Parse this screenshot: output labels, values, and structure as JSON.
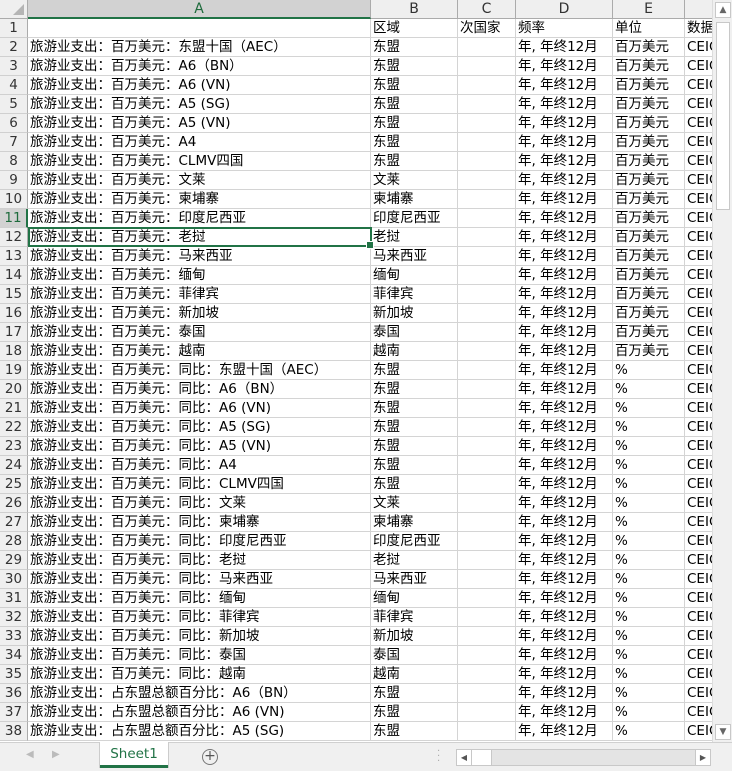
{
  "columns": [
    "A",
    "B",
    "C",
    "D",
    "E",
    ""
  ],
  "selected_cell": "A12",
  "rows": [
    [
      "",
      "区域",
      "次国家",
      "频率",
      "单位",
      "数据"
    ],
    [
      "旅游业支出：百万美元：东盟十国（AEC）",
      "东盟",
      "",
      "年, 年终12月",
      "百万美元",
      "CEIC"
    ],
    [
      "旅游业支出：百万美元：A6（BN）",
      "东盟",
      "",
      "年, 年终12月",
      "百万美元",
      "CEIC"
    ],
    [
      "旅游业支出：百万美元：A6 (VN)",
      "东盟",
      "",
      "年, 年终12月",
      "百万美元",
      "CEIC"
    ],
    [
      "旅游业支出：百万美元：A5 (SG)",
      "东盟",
      "",
      "年, 年终12月",
      "百万美元",
      "CEIC"
    ],
    [
      "旅游业支出：百万美元：A5 (VN)",
      "东盟",
      "",
      "年, 年终12月",
      "百万美元",
      "CEIC"
    ],
    [
      "旅游业支出：百万美元：A4",
      "东盟",
      "",
      "年, 年终12月",
      "百万美元",
      "CEIC"
    ],
    [
      "旅游业支出：百万美元：CLMV四国",
      "东盟",
      "",
      "年, 年终12月",
      "百万美元",
      "CEIC"
    ],
    [
      "旅游业支出：百万美元：文莱",
      "文莱",
      "",
      "年, 年终12月",
      "百万美元",
      "CEIC"
    ],
    [
      "旅游业支出：百万美元：柬埔寨",
      "柬埔寨",
      "",
      "年, 年终12月",
      "百万美元",
      "CEIC"
    ],
    [
      "旅游业支出：百万美元：印度尼西亚",
      "印度尼西亚",
      "",
      "年, 年终12月",
      "百万美元",
      "CEIC"
    ],
    [
      "旅游业支出：百万美元：老挝",
      "老挝",
      "",
      "年, 年终12月",
      "百万美元",
      "CEIC"
    ],
    [
      "旅游业支出：百万美元：马来西亚",
      "马来西亚",
      "",
      "年, 年终12月",
      "百万美元",
      "CEIC"
    ],
    [
      "旅游业支出：百万美元：缅甸",
      "缅甸",
      "",
      "年, 年终12月",
      "百万美元",
      "CEIC"
    ],
    [
      "旅游业支出：百万美元：菲律宾",
      "菲律宾",
      "",
      "年, 年终12月",
      "百万美元",
      "CEIC"
    ],
    [
      "旅游业支出：百万美元：新加坡",
      "新加坡",
      "",
      "年, 年终12月",
      "百万美元",
      "CEIC"
    ],
    [
      "旅游业支出：百万美元：泰国",
      "泰国",
      "",
      "年, 年终12月",
      "百万美元",
      "CEIC"
    ],
    [
      "旅游业支出：百万美元：越南",
      "越南",
      "",
      "年, 年终12月",
      "百万美元",
      "CEIC"
    ],
    [
      "旅游业支出：百万美元：同比：东盟十国（AEC）",
      "东盟",
      "",
      "年, 年终12月",
      "%",
      "CEIC"
    ],
    [
      "旅游业支出：百万美元：同比：A6（BN）",
      "东盟",
      "",
      "年, 年终12月",
      "%",
      "CEIC"
    ],
    [
      "旅游业支出：百万美元：同比：A6 (VN)",
      "东盟",
      "",
      "年, 年终12月",
      "%",
      "CEIC"
    ],
    [
      "旅游业支出：百万美元：同比：A5 (SG)",
      "东盟",
      "",
      "年, 年终12月",
      "%",
      "CEIC"
    ],
    [
      "旅游业支出：百万美元：同比：A5 (VN)",
      "东盟",
      "",
      "年, 年终12月",
      "%",
      "CEIC"
    ],
    [
      "旅游业支出：百万美元：同比：A4",
      "东盟",
      "",
      "年, 年终12月",
      "%",
      "CEIC"
    ],
    [
      "旅游业支出：百万美元：同比：CLMV四国",
      "东盟",
      "",
      "年, 年终12月",
      "%",
      "CEIC"
    ],
    [
      "旅游业支出：百万美元：同比：文莱",
      "文莱",
      "",
      "年, 年终12月",
      "%",
      "CEIC"
    ],
    [
      "旅游业支出：百万美元：同比：柬埔寨",
      "柬埔寨",
      "",
      "年, 年终12月",
      "%",
      "CEIC"
    ],
    [
      "旅游业支出：百万美元：同比：印度尼西亚",
      "印度尼西亚",
      "",
      "年, 年终12月",
      "%",
      "CEIC"
    ],
    [
      "旅游业支出：百万美元：同比：老挝",
      "老挝",
      "",
      "年, 年终12月",
      "%",
      "CEIC"
    ],
    [
      "旅游业支出：百万美元：同比：马来西亚",
      "马来西亚",
      "",
      "年, 年终12月",
      "%",
      "CEIC"
    ],
    [
      "旅游业支出：百万美元：同比：缅甸",
      "缅甸",
      "",
      "年, 年终12月",
      "%",
      "CEIC"
    ],
    [
      "旅游业支出：百万美元：同比：菲律宾",
      "菲律宾",
      "",
      "年, 年终12月",
      "%",
      "CEIC"
    ],
    [
      "旅游业支出：百万美元：同比：新加坡",
      "新加坡",
      "",
      "年, 年终12月",
      "%",
      "CEIC"
    ],
    [
      "旅游业支出：百万美元：同比：泰国",
      "泰国",
      "",
      "年, 年终12月",
      "%",
      "CEIC"
    ],
    [
      "旅游业支出：百万美元：同比：越南",
      "越南",
      "",
      "年, 年终12月",
      "%",
      "CEIC"
    ],
    [
      "旅游业支出：占东盟总额百分比：A6（BN）",
      "东盟",
      "",
      "年, 年终12月",
      "%",
      "CEIC"
    ],
    [
      "旅游业支出：占东盟总额百分比：A6 (VN)",
      "东盟",
      "",
      "年, 年终12月",
      "%",
      "CEIC"
    ],
    [
      "旅游业支出：占东盟总额百分比：A5 (SG)",
      "东盟",
      "",
      "年, 年终12月",
      "%",
      "CEIC"
    ]
  ],
  "sheet_tab": "Sheet1",
  "add_sheet_icon": "plus-circle-icon",
  "accent": "#217346"
}
